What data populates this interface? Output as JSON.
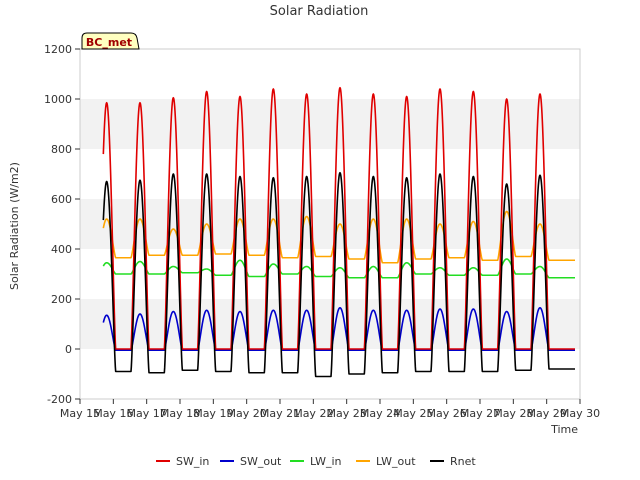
{
  "chart_data": {
    "type": "line",
    "title": "Solar Radiation",
    "xlabel": "Time",
    "ylabel": "Solar Radiation (W/m2)",
    "ylim": [
      -200,
      1200
    ],
    "xlim": [
      15,
      30
    ],
    "yticks": [
      -200,
      0,
      200,
      400,
      600,
      800,
      1000,
      1200
    ],
    "xticks": [
      15,
      16,
      17,
      18,
      19,
      20,
      21,
      22,
      23,
      24,
      25,
      26,
      27,
      28,
      29,
      30
    ],
    "xtick_labels": [
      "May 15",
      "May 16",
      "May 17",
      "May 18",
      "May 19",
      "May 20",
      "May 21",
      "May 22",
      "May 23",
      "May 24",
      "May 25",
      "May 26",
      "May 27",
      "May 28",
      "May 29",
      "May 30"
    ],
    "grid": "horizontal bands",
    "legend_position": "bottom",
    "site_label": "BC_met",
    "days": [
      15.8,
      16.8,
      17.8,
      18.8,
      19.8,
      20.8,
      21.8,
      22.8,
      23.8,
      24.8,
      25.8,
      26.8,
      27.8,
      28.8
    ],
    "series": [
      {
        "name": "SW_in",
        "color": "#e00000",
        "night_value": 0,
        "daily_peaks": [
          985,
          985,
          1005,
          1030,
          1010,
          1040,
          1020,
          1045,
          1020,
          1010,
          1040,
          1030,
          1000,
          1020
        ]
      },
      {
        "name": "SW_out",
        "color": "#0000cc",
        "night_value": -5,
        "daily_peaks": [
          135,
          140,
          150,
          155,
          150,
          155,
          155,
          165,
          155,
          155,
          160,
          160,
          150,
          165
        ]
      },
      {
        "name": "LW_in",
        "color": "#22dd22",
        "night_values": [
          280,
          300,
          300,
          305,
          295,
          290,
          300,
          290,
          285,
          285,
          300,
          295,
          295,
          300,
          285
        ],
        "daily_peaks": [
          345,
          350,
          330,
          320,
          355,
          340,
          330,
          325,
          330,
          345,
          325,
          325,
          360,
          330
        ]
      },
      {
        "name": "LW_out",
        "color": "#ffa500",
        "night_values": [
          345,
          365,
          375,
          375,
          380,
          375,
          365,
          370,
          360,
          345,
          360,
          365,
          355,
          370,
          355
        ],
        "daily_peaks": [
          520,
          520,
          480,
          500,
          520,
          520,
          530,
          500,
          520,
          520,
          500,
          510,
          550,
          500
        ]
      },
      {
        "name": "Rnet",
        "color": "#000000",
        "night_values": [
          -70,
          -90,
          -95,
          -85,
          -90,
          -95,
          -95,
          -110,
          -100,
          -95,
          -90,
          -90,
          -90,
          -85,
          -80
        ],
        "daily_peaks": [
          670,
          675,
          700,
          700,
          690,
          685,
          690,
          705,
          690,
          685,
          700,
          690,
          660,
          695
        ]
      }
    ]
  }
}
